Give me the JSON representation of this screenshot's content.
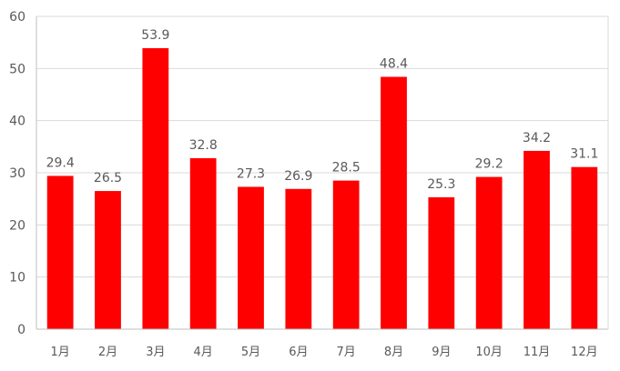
{
  "chart_data": {
    "type": "bar",
    "title": "",
    "xlabel": "",
    "ylabel": "",
    "categories": [
      "1月",
      "2月",
      "3月",
      "4月",
      "5月",
      "6月",
      "7月",
      "8月",
      "9月",
      "10月",
      "11月",
      "12月"
    ],
    "series": [
      {
        "values": [
          29.4,
          26.5,
          53.9,
          32.8,
          27.3,
          26.9,
          28.5,
          48.4,
          25.3,
          29.2,
          34.2,
          31.1
        ],
        "color": "#ff0000"
      }
    ],
    "data_labels": [
      "29.4",
      "26.5",
      "53.9",
      "32.8",
      "27.3",
      "26.9",
      "28.5",
      "48.4",
      "25.3",
      "29.2",
      "34.2",
      "31.1"
    ],
    "ylim": [
      0,
      60
    ],
    "yticks": [
      0,
      10,
      20,
      30,
      40,
      50,
      60
    ],
    "grid": true,
    "legend": "none",
    "colors": {
      "bar": "#ff0000",
      "gridline": "#d9d9d9",
      "axis": "#bfbfbf",
      "text": "#595959"
    }
  }
}
